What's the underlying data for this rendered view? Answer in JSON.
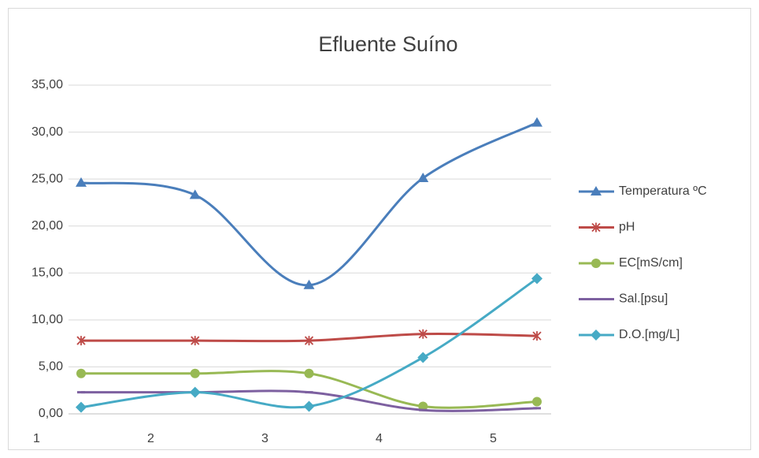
{
  "chart_data": {
    "type": "line",
    "title": "Efluente Suíno",
    "categories": [
      "1",
      "2",
      "3",
      "4",
      "5"
    ],
    "series": [
      {
        "name": "Temperatura ºC",
        "color": "#4a7ebb",
        "marker": "triangle",
        "values": [
          24.6,
          23.3,
          13.7,
          25.1,
          31.0
        ]
      },
      {
        "name": "pH",
        "color": "#be4b48",
        "marker": "star",
        "values": [
          7.8,
          7.8,
          7.8,
          8.5,
          8.3
        ]
      },
      {
        "name": "EC[mS/cm]",
        "color": "#98b954",
        "marker": "circle",
        "values": [
          4.3,
          4.3,
          4.3,
          0.8,
          1.3
        ]
      },
      {
        "name": "Sal.[psu]",
        "color": "#7d60a0",
        "marker": "dash",
        "values": [
          2.3,
          2.3,
          2.3,
          0.4,
          0.6
        ]
      },
      {
        "name": "D.O.[mg/L]",
        "color": "#46aac5",
        "marker": "diamond",
        "values": [
          0.7,
          2.3,
          0.8,
          6.0,
          14.4
        ]
      }
    ],
    "ylim": [
      0,
      35
    ],
    "yticks": [
      {
        "value": 0,
        "label": "0,00"
      },
      {
        "value": 5,
        "label": "5,00"
      },
      {
        "value": 10,
        "label": "10,00"
      },
      {
        "value": 15,
        "label": "15,00"
      },
      {
        "value": 20,
        "label": "20,00"
      },
      {
        "value": 25,
        "label": "25,00"
      },
      {
        "value": 30,
        "label": "30,00"
      },
      {
        "value": 35,
        "label": "35,00"
      }
    ],
    "grid": true,
    "smooth": true,
    "legend": "right"
  }
}
